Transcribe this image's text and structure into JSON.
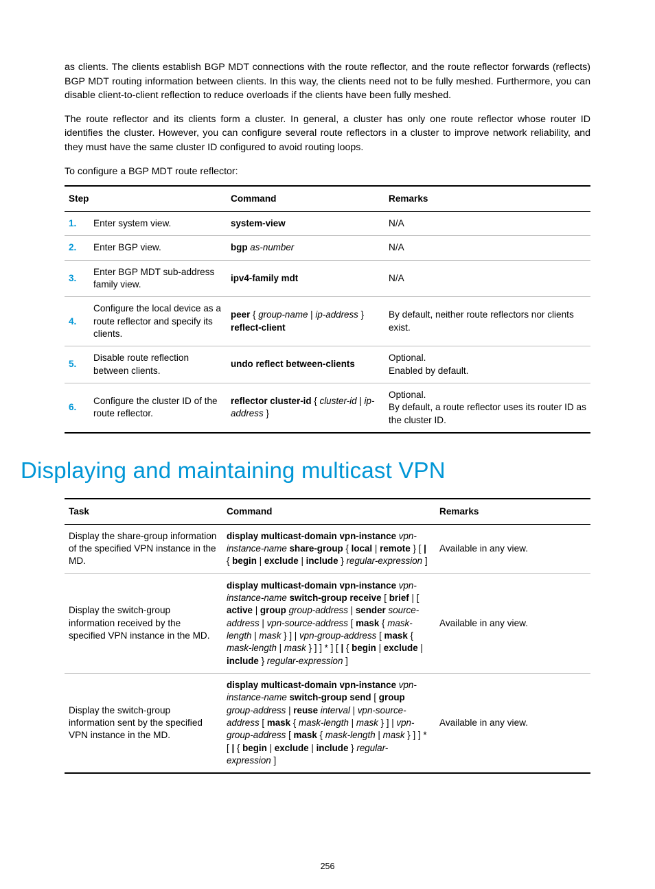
{
  "colors": {
    "accent": "#0096d6",
    "text": "#000000",
    "rule_light": "#b8b8b8",
    "rule_heavy": "#000000",
    "background": "#ffffff"
  },
  "typography": {
    "body_family": "Segoe UI / Helvetica Neue",
    "body_size_pt": 10.7,
    "heading_size_pt": 25,
    "heading_weight": 300,
    "body_weight": 300,
    "bold_weight": 700
  },
  "paragraphs": {
    "p1": "as clients. The clients establish BGP MDT connections with the route reflector, and the route reflector forwards (reflects) BGP MDT routing information between clients. In this way, the clients need not to be fully meshed. Furthermore, you can disable client-to-client reflection to reduce overloads if the clients have been fully meshed.",
    "p2": "The route reflector and its clients form a cluster. In general, a cluster has only one route reflector whose router ID identifies the cluster. However, you can configure several route reflectors in a cluster to improve network reliability, and they must have the same cluster ID configured to avoid routing loops.",
    "p3": "To configure a BGP MDT route reflector:"
  },
  "table1": {
    "columns": [
      "Step",
      "Command",
      "Remarks"
    ],
    "rows": [
      {
        "num": "1.",
        "step": "Enter system view.",
        "cmd": [
          {
            "t": "bold",
            "v": "system-view"
          }
        ],
        "remarks": [
          "N/A"
        ]
      },
      {
        "num": "2.",
        "step": "Enter BGP view.",
        "cmd": [
          {
            "t": "bold",
            "v": "bgp "
          },
          {
            "t": "ital",
            "v": "as-number"
          }
        ],
        "remarks": [
          "N/A"
        ]
      },
      {
        "num": "3.",
        "step": "Enter BGP MDT sub-address family view.",
        "cmd": [
          {
            "t": "bold",
            "v": "ipv4-family mdt"
          }
        ],
        "remarks": [
          "N/A"
        ]
      },
      {
        "num": "4.",
        "step": "Configure the local device as a route reflector and specify its clients.",
        "cmd": [
          {
            "t": "bold",
            "v": "peer"
          },
          {
            "t": "plain",
            "v": " { "
          },
          {
            "t": "ital",
            "v": "group-name"
          },
          {
            "t": "plain",
            "v": " | "
          },
          {
            "t": "ital",
            "v": "ip-address"
          },
          {
            "t": "plain",
            "v": " } "
          },
          {
            "t": "bold",
            "v": "reflect-client"
          }
        ],
        "remarks": [
          "By default, neither route reflectors nor clients exist."
        ]
      },
      {
        "num": "5.",
        "step": "Disable route reflection between clients.",
        "cmd": [
          {
            "t": "bold",
            "v": "undo reflect between-clients"
          }
        ],
        "remarks": [
          "Optional.",
          "Enabled by default."
        ]
      },
      {
        "num": "6.",
        "step": "Configure the cluster ID of the route reflector.",
        "cmd": [
          {
            "t": "bold",
            "v": "reflector cluster-id"
          },
          {
            "t": "plain",
            "v": " { "
          },
          {
            "t": "ital",
            "v": "cluster-id"
          },
          {
            "t": "plain",
            "v": " | "
          },
          {
            "t": "ital",
            "v": "ip-address"
          },
          {
            "t": "plain",
            "v": " }"
          }
        ],
        "remarks": [
          "Optional.",
          "By default, a route reflector uses its router ID as the cluster ID."
        ]
      }
    ]
  },
  "section_heading": "Displaying and maintaining multicast VPN",
  "table2": {
    "columns": [
      "Task",
      "Command",
      "Remarks"
    ],
    "rows": [
      {
        "task": "Display the share-group information of the specified VPN instance in the MD.",
        "cmd": [
          {
            "t": "bold",
            "v": "display multicast-domain vpn-instance"
          },
          {
            "t": "plain",
            "v": " "
          },
          {
            "t": "ital",
            "v": "vpn-instance-name"
          },
          {
            "t": "plain",
            "v": " "
          },
          {
            "t": "bold",
            "v": "share-group"
          },
          {
            "t": "plain",
            "v": " { "
          },
          {
            "t": "bold",
            "v": "local"
          },
          {
            "t": "plain",
            "v": " | "
          },
          {
            "t": "bold",
            "v": "remote"
          },
          {
            "t": "plain",
            "v": " } [ "
          },
          {
            "t": "bold",
            "v": "|"
          },
          {
            "t": "plain",
            "v": " { "
          },
          {
            "t": "bold",
            "v": "begin"
          },
          {
            "t": "plain",
            "v": " | "
          },
          {
            "t": "bold",
            "v": "exclude"
          },
          {
            "t": "plain",
            "v": " | "
          },
          {
            "t": "bold",
            "v": "include"
          },
          {
            "t": "plain",
            "v": " } "
          },
          {
            "t": "ital",
            "v": "regular-expression"
          },
          {
            "t": "plain",
            "v": " ]"
          }
        ],
        "remarks": "Available in any view."
      },
      {
        "task": "Display the switch-group information received by the specified VPN instance in the MD.",
        "cmd": [
          {
            "t": "bold",
            "v": "display multicast-domain vpn-instance"
          },
          {
            "t": "plain",
            "v": " "
          },
          {
            "t": "ital",
            "v": "vpn-instance-name"
          },
          {
            "t": "plain",
            "v": " "
          },
          {
            "t": "bold",
            "v": "switch-group receive"
          },
          {
            "t": "plain",
            "v": " [ "
          },
          {
            "t": "bold",
            "v": "brief"
          },
          {
            "t": "plain",
            "v": " | [ "
          },
          {
            "t": "bold",
            "v": "active"
          },
          {
            "t": "plain",
            "v": " | "
          },
          {
            "t": "bold",
            "v": "group"
          },
          {
            "t": "plain",
            "v": " "
          },
          {
            "t": "ital",
            "v": "group-address"
          },
          {
            "t": "plain",
            "v": " | "
          },
          {
            "t": "bold",
            "v": "sender"
          },
          {
            "t": "plain",
            "v": " "
          },
          {
            "t": "ital",
            "v": "source-address"
          },
          {
            "t": "plain",
            "v": " | "
          },
          {
            "t": "ital",
            "v": "vpn-source-address"
          },
          {
            "t": "plain",
            "v": " [ "
          },
          {
            "t": "bold",
            "v": "mask"
          },
          {
            "t": "plain",
            "v": " { "
          },
          {
            "t": "ital",
            "v": "mask-length"
          },
          {
            "t": "plain",
            "v": " | "
          },
          {
            "t": "ital",
            "v": "mask"
          },
          {
            "t": "plain",
            "v": " } ] | "
          },
          {
            "t": "ital",
            "v": "vpn-group-address"
          },
          {
            "t": "plain",
            "v": " [ "
          },
          {
            "t": "bold",
            "v": "mask"
          },
          {
            "t": "plain",
            "v": " { "
          },
          {
            "t": "ital",
            "v": "mask-length"
          },
          {
            "t": "plain",
            "v": " | "
          },
          {
            "t": "ital",
            "v": "mask"
          },
          {
            "t": "plain",
            "v": " } ] ] * ] [ "
          },
          {
            "t": "bold",
            "v": "|"
          },
          {
            "t": "plain",
            "v": " { "
          },
          {
            "t": "bold",
            "v": "begin"
          },
          {
            "t": "plain",
            "v": " | "
          },
          {
            "t": "bold",
            "v": "exclude"
          },
          {
            "t": "plain",
            "v": " | "
          },
          {
            "t": "bold",
            "v": "include"
          },
          {
            "t": "plain",
            "v": " } "
          },
          {
            "t": "ital",
            "v": "regular-expression"
          },
          {
            "t": "plain",
            "v": " ]"
          }
        ],
        "remarks": "Available in any view."
      },
      {
        "task": "Display the switch-group information sent by the specified VPN instance in the MD.",
        "cmd": [
          {
            "t": "bold",
            "v": "display multicast-domain vpn-instance"
          },
          {
            "t": "plain",
            "v": " "
          },
          {
            "t": "ital",
            "v": "vpn-instance-name"
          },
          {
            "t": "plain",
            "v": " "
          },
          {
            "t": "bold",
            "v": "switch-group send"
          },
          {
            "t": "plain",
            "v": " [ "
          },
          {
            "t": "bold",
            "v": "group"
          },
          {
            "t": "plain",
            "v": " "
          },
          {
            "t": "ital",
            "v": "group-address"
          },
          {
            "t": "plain",
            "v": " | "
          },
          {
            "t": "bold",
            "v": "reuse"
          },
          {
            "t": "plain",
            "v": " "
          },
          {
            "t": "ital",
            "v": "interval"
          },
          {
            "t": "plain",
            "v": " | "
          },
          {
            "t": "ital",
            "v": "vpn-source-address"
          },
          {
            "t": "plain",
            "v": " [ "
          },
          {
            "t": "bold",
            "v": "mask"
          },
          {
            "t": "plain",
            "v": " { "
          },
          {
            "t": "ital",
            "v": "mask-length"
          },
          {
            "t": "plain",
            "v": " | "
          },
          {
            "t": "ital",
            "v": "mask"
          },
          {
            "t": "plain",
            "v": " } ] | "
          },
          {
            "t": "ital",
            "v": "vpn-group-address"
          },
          {
            "t": "plain",
            "v": " [ "
          },
          {
            "t": "bold",
            "v": "mask"
          },
          {
            "t": "plain",
            "v": " { "
          },
          {
            "t": "ital",
            "v": "mask-length"
          },
          {
            "t": "plain",
            "v": " | "
          },
          {
            "t": "ital",
            "v": "mask"
          },
          {
            "t": "plain",
            "v": " } ] ] * [ "
          },
          {
            "t": "bold",
            "v": "|"
          },
          {
            "t": "plain",
            "v": " { "
          },
          {
            "t": "bold",
            "v": "begin"
          },
          {
            "t": "plain",
            "v": " | "
          },
          {
            "t": "bold",
            "v": "exclude"
          },
          {
            "t": "plain",
            "v": " | "
          },
          {
            "t": "bold",
            "v": "include"
          },
          {
            "t": "plain",
            "v": " } "
          },
          {
            "t": "ital",
            "v": "regular-expression"
          },
          {
            "t": "plain",
            "v": " ]"
          }
        ],
        "remarks": "Available in any view."
      }
    ]
  },
  "page_number": "256"
}
